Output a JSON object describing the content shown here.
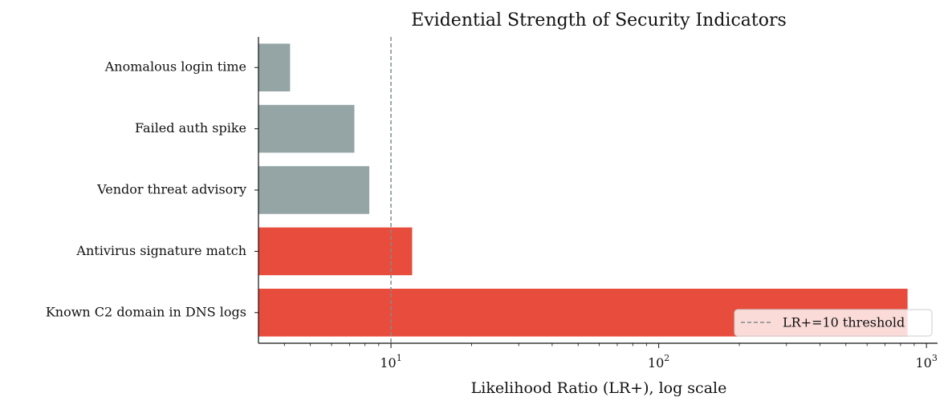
{
  "chart_data": {
    "type": "bar",
    "orientation": "horizontal",
    "title": "Evidential Strength of Security Indicators",
    "xlabel": "Likelihood Ratio (LR+), log scale",
    "ylabel": "",
    "xscale": "log",
    "xlim": [
      3.2,
      1100
    ],
    "categories": [
      "Anomalous login time",
      "Failed auth spike",
      "Vendor threat advisory",
      "Antivirus signature match",
      "Known C2 domain in DNS logs"
    ],
    "values": [
      4.2,
      7.3,
      8.3,
      12,
      850
    ],
    "bar_colors": [
      "#95a5a6",
      "#95a5a6",
      "#95a5a6",
      "#e74c3c",
      "#e74c3c"
    ],
    "x_ticks": [
      {
        "value": 10,
        "base": "10",
        "exp": "1"
      },
      {
        "value": 100,
        "base": "10",
        "exp": "2"
      },
      {
        "value": 1000,
        "base": "10",
        "exp": "3"
      }
    ],
    "threshold": {
      "value": 10,
      "label": "LR+=10 threshold",
      "color": "#7f8c8d"
    },
    "legend": {
      "placement": "lower-right"
    },
    "grid": false
  }
}
